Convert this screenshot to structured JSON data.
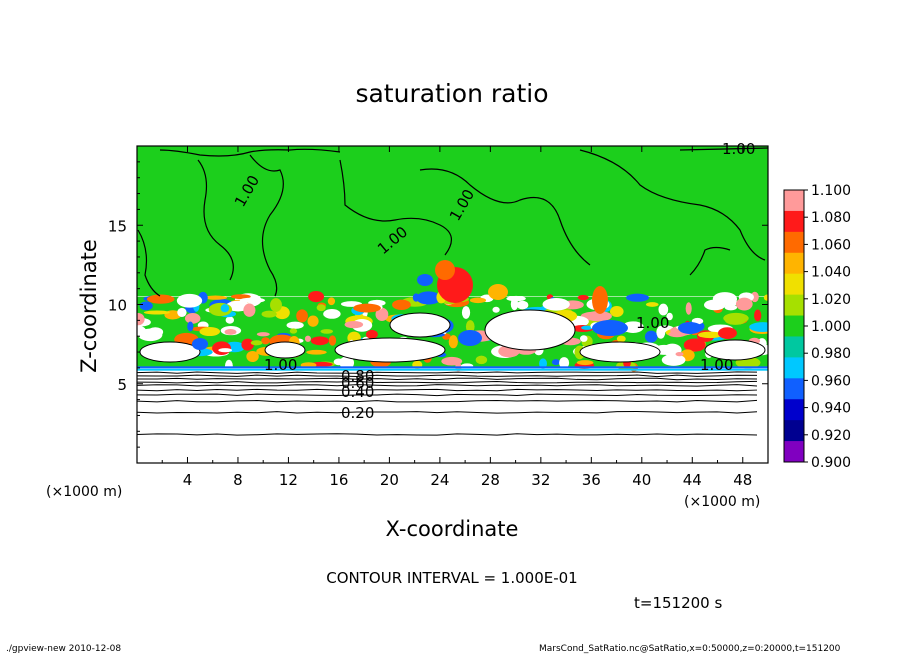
{
  "chart_data": {
    "type": "heatmap",
    "title": "saturation ratio",
    "xlabel": "X-coordinate",
    "ylabel": "Z-coordinate",
    "x_unit_left": "(×1000 m)",
    "x_unit_right": "(×1000 m)",
    "xlim": [
      0,
      50
    ],
    "ylim": [
      0,
      20
    ],
    "x_ticks": [
      "4",
      "8",
      "12",
      "16",
      "20",
      "24",
      "28",
      "32",
      "36",
      "40",
      "44",
      "48"
    ],
    "y_ticks": [
      "5",
      "10",
      "15"
    ],
    "colorbar": {
      "labels": [
        "1.100",
        "1.080",
        "1.060",
        "1.040",
        "1.020",
        "1.000",
        "0.980",
        "0.960",
        "0.940",
        "0.920",
        "0.900"
      ],
      "colors": [
        "#ff9a9a",
        "#ff1a1a",
        "#ff6a00",
        "#ffb400",
        "#f0e000",
        "#a6e000",
        "#1ccf1c",
        "#00c8a0",
        "#00c8ff",
        "#1060ff",
        "#0000cc",
        "#000090",
        "#8000c0"
      ]
    },
    "fields": [
      {
        "region": "upper",
        "z_range": [
          10.5,
          20
        ],
        "value": 1.0
      },
      {
        "region": "cloud layer",
        "z_range": [
          6,
          10.5
        ],
        "value_range": [
          0.92,
          1.1
        ]
      },
      {
        "region": "lower",
        "z_range": [
          0,
          6
        ],
        "value_range": [
          0.0,
          0.9
        ]
      }
    ],
    "contour_labels": [
      "1.00",
      "1.00",
      "1.00",
      "1.00",
      "1.00",
      "1.00",
      "1.00",
      "0.80",
      "0.60",
      "0.40",
      "0.20"
    ]
  },
  "contour_interval": "CONTOUR INTERVAL = 1.000E-01",
  "time_label": "t=151200 s",
  "footer": {
    "left": "./gpview-new  2010-12-08",
    "right": "MarsCond_SatRatio.nc@SatRatio,x=0:50000,z=0:20000,t=151200"
  }
}
